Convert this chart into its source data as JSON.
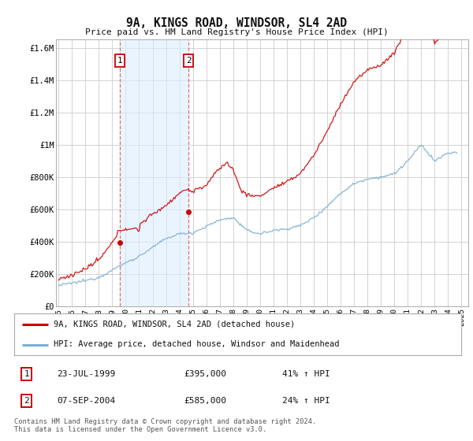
{
  "title": "9A, KINGS ROAD, WINDSOR, SL4 2AD",
  "subtitle": "Price paid vs. HM Land Registry's House Price Index (HPI)",
  "footer": "Contains HM Land Registry data © Crown copyright and database right 2024.\nThis data is licensed under the Open Government Licence v3.0.",
  "legend_line1": "9A, KINGS ROAD, WINDSOR, SL4 2AD (detached house)",
  "legend_line2": "HPI: Average price, detached house, Windsor and Maidenhead",
  "sale1_date": "23-JUL-1999",
  "sale1_price": "£395,000",
  "sale1_hpi": "41% ↑ HPI",
  "sale2_date": "07-SEP-2004",
  "sale2_price": "£585,000",
  "sale2_hpi": "24% ↑ HPI",
  "sale1_year": 1999.55,
  "sale2_year": 2004.68,
  "red_color": "#cc0000",
  "blue_color": "#7bafd4",
  "shade_color": "#ddeeff",
  "dashed_red": "#e06060",
  "background_color": "#ffffff",
  "grid_color": "#cccccc",
  "ylim": [
    0,
    1650000
  ],
  "xlim_start": 1994.8,
  "xlim_end": 2025.5
}
